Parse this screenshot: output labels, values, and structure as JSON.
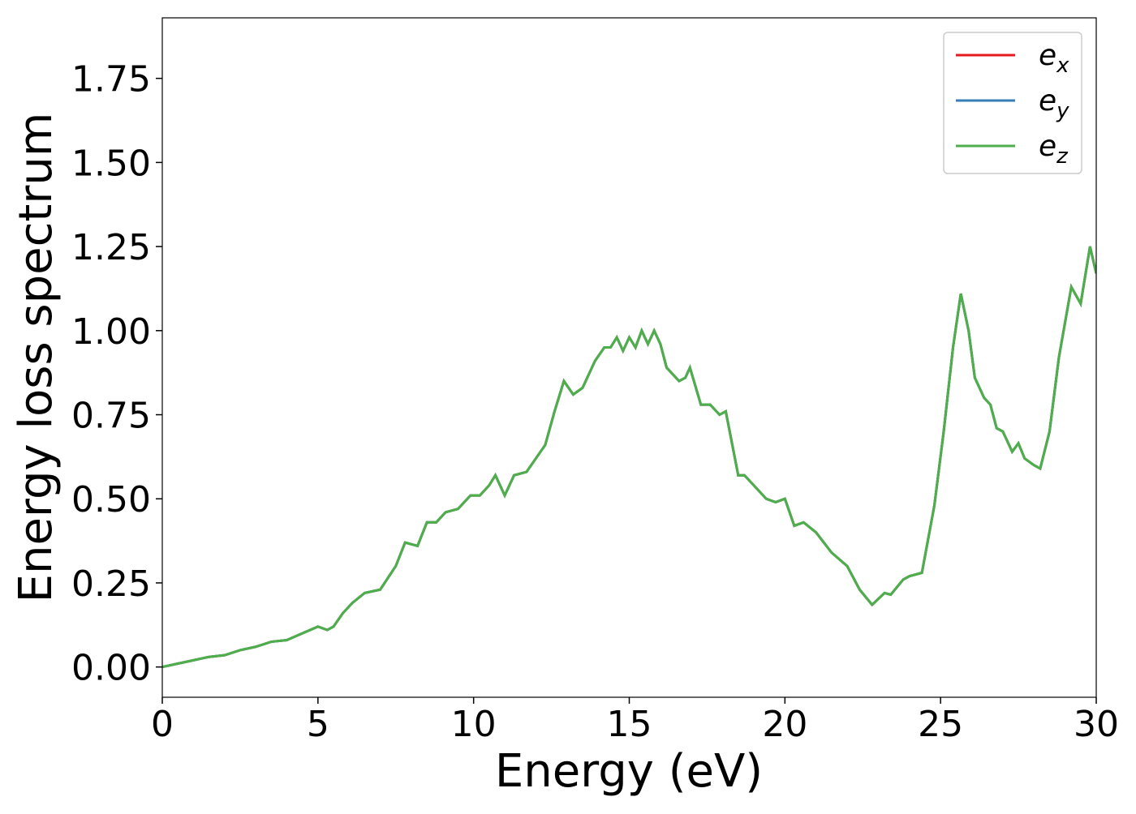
{
  "chart_data": {
    "type": "line",
    "xlabel": "Energy (eV)",
    "ylabel": "Energy loss spectrum",
    "xlim": [
      0,
      30
    ],
    "ylim": [
      -0.09,
      1.93
    ],
    "xticks": [
      0,
      5,
      10,
      15,
      20,
      25,
      30
    ],
    "yticks": [
      {
        "value": 0,
        "label": "0.00"
      },
      {
        "value": 0.25,
        "label": "0.25"
      },
      {
        "value": 0.5,
        "label": "0.50"
      },
      {
        "value": 0.75,
        "label": "0.75"
      },
      {
        "value": 1,
        "label": "1.00"
      },
      {
        "value": 1.25,
        "label": "1.25"
      },
      {
        "value": 1.5,
        "label": "1.50"
      },
      {
        "value": 1.75,
        "label": "1.75"
      }
    ],
    "legend": "upper right",
    "grid": false,
    "x": [
      0,
      0.5,
      1,
      1.5,
      2,
      2.5,
      3,
      3.5,
      4,
      4.5,
      5,
      5.3,
      5.5,
      5.8,
      6.1,
      6.5,
      7,
      7.5,
      7.8,
      8.2,
      8.5,
      8.8,
      9.1,
      9.5,
      9.9,
      10.2,
      10.5,
      10.7,
      11,
      11.3,
      11.7,
      12,
      12.3,
      12.6,
      12.9,
      13.2,
      13.5,
      13.9,
      14.2,
      14.4,
      14.6,
      14.8,
      15,
      15.2,
      15.4,
      15.6,
      15.8,
      16,
      16.2,
      16.6,
      16.8,
      16.95,
      17.3,
      17.6,
      17.9,
      18.1,
      18.5,
      18.7,
      19,
      19.4,
      19.7,
      20,
      20.3,
      20.6,
      21,
      21.5,
      22,
      22.4,
      22.8,
      23.2,
      23.4,
      23.8,
      24,
      24.4,
      24.8,
      25.1,
      25.4,
      25.65,
      25.9,
      26.1,
      26.4,
      26.6,
      26.8,
      27,
      27.3,
      27.5,
      27.7,
      28,
      28.2,
      28.5,
      28.8,
      29.2,
      29.5,
      29.8,
      30
    ],
    "series": [
      {
        "name": "ex",
        "color": "#e41a1c",
        "values": [
          0,
          0.01,
          0.02,
          0.03,
          0.035,
          0.05,
          0.06,
          0.075,
          0.08,
          0.1,
          0.12,
          0.11,
          0.12,
          0.16,
          0.19,
          0.22,
          0.23,
          0.3,
          0.37,
          0.36,
          0.43,
          0.43,
          0.46,
          0.47,
          0.51,
          0.51,
          0.54,
          0.57,
          0.51,
          0.57,
          0.58,
          0.62,
          0.66,
          0.76,
          0.85,
          0.81,
          0.83,
          0.91,
          0.95,
          0.95,
          0.98,
          0.94,
          0.98,
          0.95,
          1,
          0.96,
          1,
          0.96,
          0.89,
          0.85,
          0.86,
          0.89,
          0.78,
          0.78,
          0.75,
          0.76,
          0.57,
          0.57,
          0.54,
          0.5,
          0.49,
          0.5,
          0.42,
          0.43,
          0.4,
          0.34,
          0.3,
          0.23,
          0.185,
          0.22,
          0.215,
          0.26,
          0.27,
          0.28,
          0.48,
          0.7,
          0.95,
          1.11,
          1,
          0.86,
          0.8,
          0.78,
          0.71,
          0.7,
          0.64,
          0.665,
          0.62,
          0.6,
          0.59,
          0.7,
          0.92,
          1.13,
          1.08,
          1.25,
          1.17
        ]
      },
      {
        "name": "ey",
        "color": "#377eb8",
        "values": [
          0,
          0.01,
          0.02,
          0.03,
          0.035,
          0.05,
          0.06,
          0.075,
          0.08,
          0.1,
          0.12,
          0.11,
          0.12,
          0.16,
          0.19,
          0.22,
          0.23,
          0.3,
          0.37,
          0.36,
          0.43,
          0.43,
          0.46,
          0.47,
          0.51,
          0.51,
          0.54,
          0.57,
          0.51,
          0.57,
          0.58,
          0.62,
          0.66,
          0.76,
          0.85,
          0.81,
          0.83,
          0.91,
          0.95,
          0.95,
          0.98,
          0.94,
          0.98,
          0.95,
          1,
          0.96,
          1,
          0.96,
          0.89,
          0.85,
          0.86,
          0.89,
          0.78,
          0.78,
          0.75,
          0.76,
          0.57,
          0.57,
          0.54,
          0.5,
          0.49,
          0.5,
          0.42,
          0.43,
          0.4,
          0.34,
          0.3,
          0.23,
          0.185,
          0.22,
          0.215,
          0.26,
          0.27,
          0.28,
          0.48,
          0.7,
          0.95,
          1.11,
          1,
          0.86,
          0.8,
          0.78,
          0.71,
          0.7,
          0.64,
          0.665,
          0.62,
          0.6,
          0.59,
          0.7,
          0.92,
          1.13,
          1.08,
          1.25,
          1.17
        ]
      },
      {
        "name": "ez",
        "color": "#4daf4a",
        "values": [
          0,
          0.01,
          0.02,
          0.03,
          0.035,
          0.05,
          0.06,
          0.075,
          0.08,
          0.1,
          0.12,
          0.11,
          0.12,
          0.16,
          0.19,
          0.22,
          0.23,
          0.3,
          0.37,
          0.36,
          0.43,
          0.43,
          0.46,
          0.47,
          0.51,
          0.51,
          0.54,
          0.57,
          0.51,
          0.57,
          0.58,
          0.62,
          0.66,
          0.76,
          0.85,
          0.81,
          0.83,
          0.91,
          0.95,
          0.95,
          0.98,
          0.94,
          0.98,
          0.95,
          1,
          0.96,
          1,
          0.96,
          0.89,
          0.85,
          0.86,
          0.89,
          0.78,
          0.78,
          0.75,
          0.76,
          0.57,
          0.57,
          0.54,
          0.5,
          0.49,
          0.5,
          0.42,
          0.43,
          0.4,
          0.34,
          0.3,
          0.23,
          0.185,
          0.22,
          0.215,
          0.26,
          0.27,
          0.28,
          0.48,
          0.7,
          0.95,
          1.11,
          1,
          0.86,
          0.8,
          0.78,
          0.71,
          0.7,
          0.64,
          0.665,
          0.62,
          0.6,
          0.59,
          0.7,
          0.92,
          1.13,
          1.08,
          1.25,
          1.17
        ]
      }
    ]
  }
}
